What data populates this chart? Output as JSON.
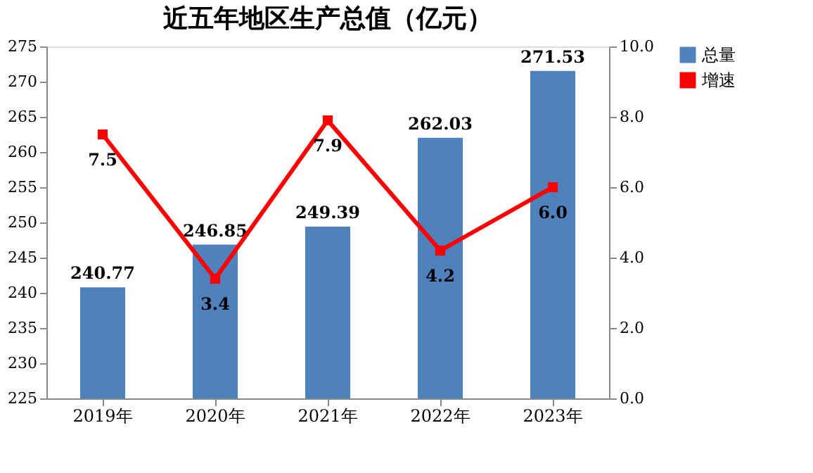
{
  "chart_data": {
    "type": "bar",
    "title": "近五年地区生产总值（亿元）",
    "categories": [
      "2019年",
      "2020年",
      "2021年",
      "2022年",
      "2023年"
    ],
    "series": [
      {
        "name": "总量",
        "color": "#4f81bd",
        "values": [
          240.77,
          246.85,
          249.39,
          262.03,
          271.53
        ],
        "value_labels": [
          "240.77",
          "246.85",
          "249.39",
          "262.03",
          "271.53"
        ]
      },
      {
        "name": "增速",
        "type": "line",
        "axis": "y2",
        "color": "#ff0000",
        "marker": "square",
        "values": [
          7.5,
          3.4,
          7.9,
          4.2,
          6.0
        ],
        "value_labels": [
          "7.5",
          "3.4",
          "7.9",
          "4.2",
          "6.0"
        ]
      }
    ],
    "ylim": [
      225,
      275
    ],
    "yticks": [
      225,
      230,
      235,
      240,
      245,
      250,
      255,
      260,
      265,
      270,
      275
    ],
    "y2lim": [
      0,
      10
    ],
    "y2ticks": [
      {
        "value": 0,
        "label": "0.0"
      },
      {
        "value": 2,
        "label": "2.0"
      },
      {
        "value": 4,
        "label": "4.0"
      },
      {
        "value": 6,
        "label": "6.0"
      },
      {
        "value": 8,
        "label": "8.0"
      },
      {
        "value": 10,
        "label": "10.0"
      }
    ],
    "grid": false,
    "legend": "right"
  }
}
